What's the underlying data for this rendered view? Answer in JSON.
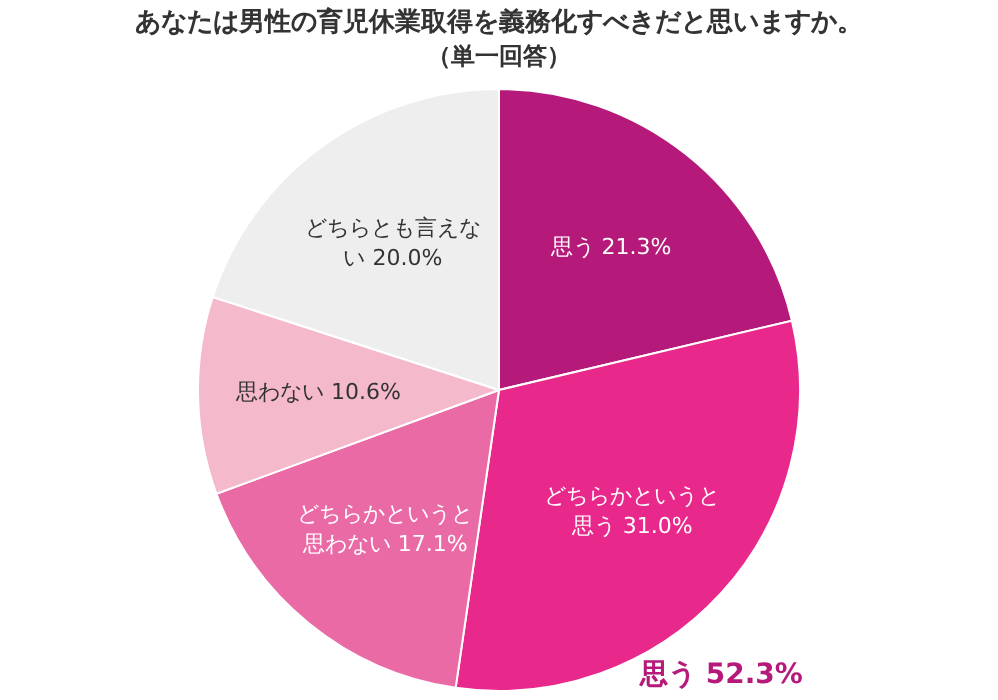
{
  "chart_data": {
    "type": "pie",
    "title": "あなたは男性の育児休業取得を義務化すべきだと思いますか。",
    "subtitle": "（単一回答）",
    "categories": [
      "思う",
      "どちらかというと思う",
      "どちらかというと思わない",
      "思わない",
      "どちらとも言えない"
    ],
    "values": [
      21.3,
      31.0,
      17.1,
      10.6,
      20.0
    ],
    "colors": [
      "#b5197a",
      "#e8288a",
      "#ea6aa6",
      "#f5b9cc",
      "#eeeeee"
    ],
    "value_labels": [
      "21.3%",
      "31.0%",
      "17.1%",
      "10.6%",
      "20.0%"
    ],
    "annotations": [
      "思う 52.3%"
    ],
    "legend": false
  }
}
